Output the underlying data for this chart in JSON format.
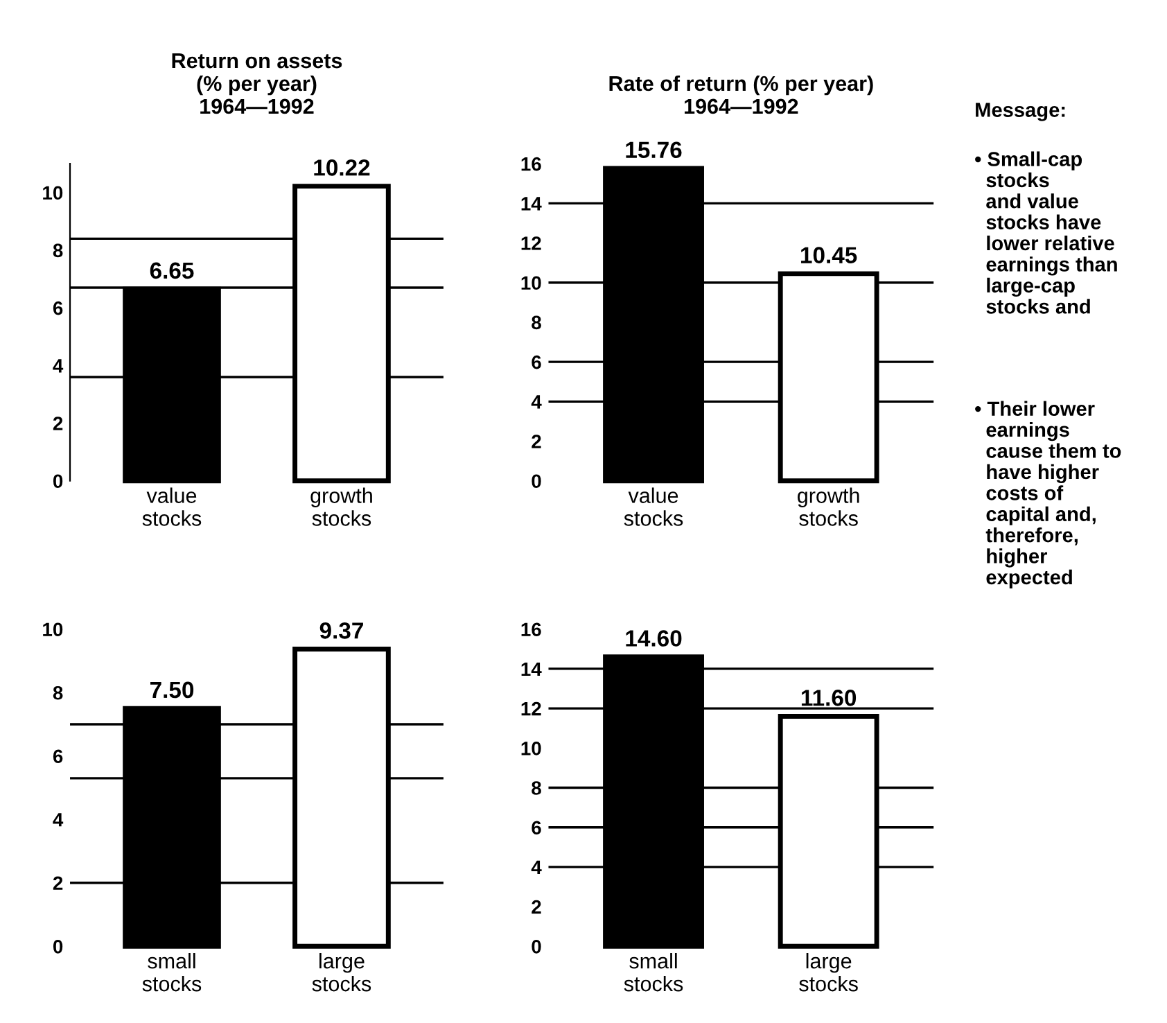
{
  "chart_data": [
    {
      "type": "bar",
      "title": "Return on assets\n(% per year)\n1964—1992",
      "categories": [
        "value\nstocks",
        "growth\nstocks"
      ],
      "values": [
        6.65,
        10.22
      ],
      "value_labels": [
        "6.65",
        "10.22"
      ],
      "colors": [
        "#000000",
        "#ffffff"
      ],
      "ylim": [
        0,
        11
      ],
      "yticks": [
        0,
        2,
        4,
        6,
        8,
        10
      ],
      "ref_lines": [
        {
          "axis": "y",
          "value": 8.4
        },
        {
          "axis": "y",
          "value": 6.7
        },
        {
          "axis": "y",
          "value": 3.6
        }
      ]
    },
    {
      "type": "bar",
      "title": "Rate of return (% per year)\n1964—1992",
      "categories": [
        "value\nstocks",
        "growth\nstocks"
      ],
      "values": [
        15.76,
        10.45
      ],
      "value_labels": [
        "15.76",
        "10.45"
      ],
      "colors": [
        "#000000",
        "#ffffff"
      ],
      "ylim": [
        0,
        16
      ],
      "yticks": [
        0,
        2,
        4,
        6,
        8,
        10,
        12,
        14,
        16
      ],
      "ref_lines": [
        {
          "axis": "y",
          "value": 14
        },
        {
          "axis": "y",
          "value": 10
        },
        {
          "axis": "y",
          "value": 6
        },
        {
          "axis": "y",
          "value": 4
        }
      ]
    },
    {
      "type": "bar",
      "categories": [
        "small\nstocks",
        "large\nstocks"
      ],
      "values": [
        7.5,
        9.37
      ],
      "value_labels": [
        "7.50",
        "9.37"
      ],
      "colors": [
        "#000000",
        "#ffffff"
      ],
      "ylim": [
        0,
        10
      ],
      "yticks": [
        0,
        2,
        4,
        6,
        8,
        10
      ],
      "ref_lines": [
        {
          "axis": "y",
          "value": 7
        },
        {
          "axis": "y",
          "value": 5.3
        },
        {
          "axis": "y",
          "value": 2
        }
      ]
    },
    {
      "type": "bar",
      "categories": [
        "small\nstocks",
        "large\nstocks"
      ],
      "values": [
        14.6,
        11.6
      ],
      "value_labels": [
        "14.60",
        "11.60"
      ],
      "colors": [
        "#000000",
        "#ffffff"
      ],
      "ylim": [
        0,
        16
      ],
      "yticks": [
        0,
        2,
        4,
        6,
        8,
        10,
        12,
        14,
        16
      ],
      "ref_lines": [
        {
          "axis": "y",
          "value": 14
        },
        {
          "axis": "y",
          "value": 12
        },
        {
          "axis": "y",
          "value": 8
        },
        {
          "axis": "y",
          "value": 6
        },
        {
          "axis": "y",
          "value": 4
        }
      ]
    },
    {
      "type": "other",
      "annotations": [
        "Message:",
        "• Small-cap\n  stocks\n  and value\n  stocks have\n  lower relative\n  earnings than\n  large-cap\n  stocks and",
        "• Their lower\n  earnings\n  cause them to\n  have higher\n  costs of\n  capital and,\n  therefore,\n  higher\n  expected"
      ]
    }
  ]
}
